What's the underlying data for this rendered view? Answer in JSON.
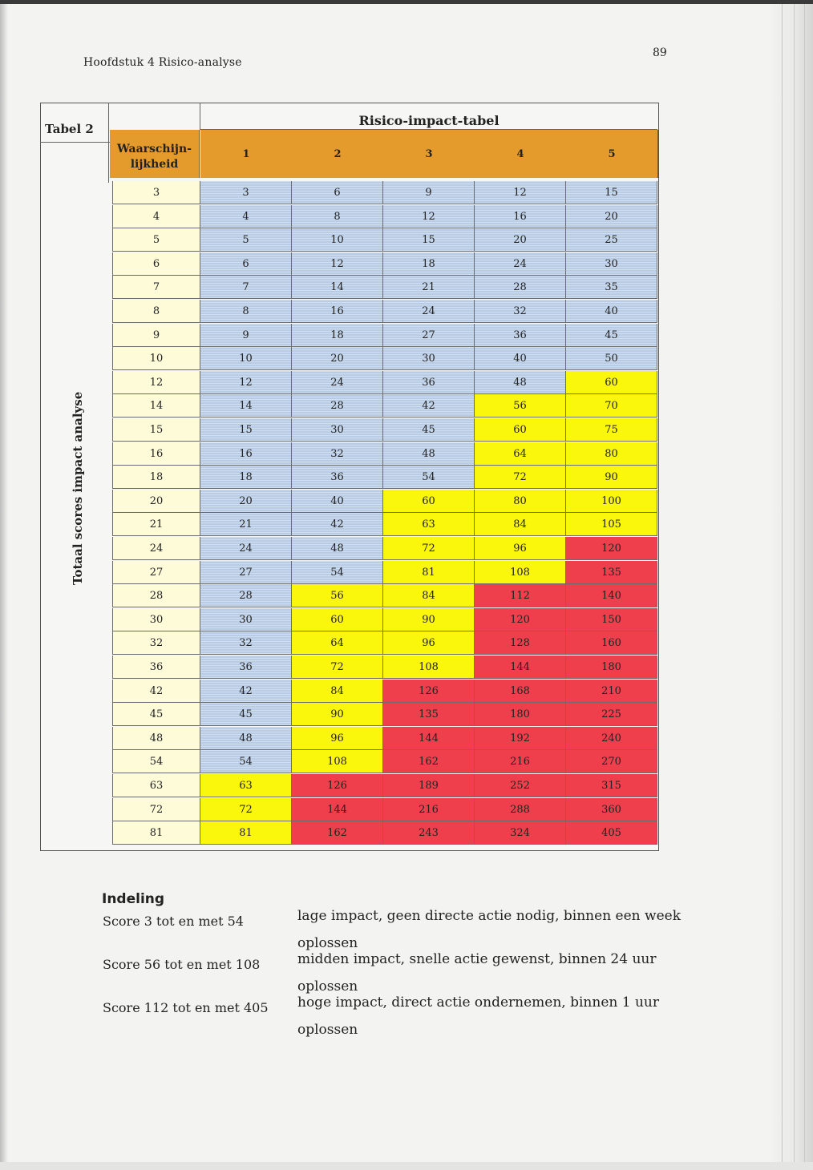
{
  "running_head": "Hoofdstuk 4  Risico-analyse",
  "page_number": "89",
  "table": {
    "label": "Tabel 2",
    "title": "Risico-impact-tabel",
    "row_header": "Waarschijn-\nlijkheid",
    "side_label": "Totaal scores impact analyse",
    "columns": [
      "1",
      "2",
      "3",
      "4",
      "5"
    ],
    "rows": [
      {
        "w": "3",
        "v": [
          3,
          6,
          9,
          12,
          15
        ]
      },
      {
        "w": "4",
        "v": [
          4,
          8,
          12,
          16,
          20
        ]
      },
      {
        "w": "5",
        "v": [
          5,
          10,
          15,
          20,
          25
        ]
      },
      {
        "w": "6",
        "v": [
          6,
          12,
          18,
          24,
          30
        ]
      },
      {
        "w": "7",
        "v": [
          7,
          14,
          21,
          28,
          35
        ]
      },
      {
        "w": "8",
        "v": [
          8,
          16,
          24,
          32,
          40
        ]
      },
      {
        "w": "9",
        "v": [
          9,
          18,
          27,
          36,
          45
        ]
      },
      {
        "w": "10",
        "v": [
          10,
          20,
          30,
          40,
          50
        ]
      },
      {
        "w": "12",
        "v": [
          12,
          24,
          36,
          48,
          60
        ]
      },
      {
        "w": "14",
        "v": [
          14,
          28,
          42,
          56,
          70
        ]
      },
      {
        "w": "15",
        "v": [
          15,
          30,
          45,
          60,
          75
        ]
      },
      {
        "w": "16",
        "v": [
          16,
          32,
          48,
          64,
          80
        ]
      },
      {
        "w": "18",
        "v": [
          18,
          36,
          54,
          72,
          90
        ]
      },
      {
        "w": "20",
        "v": [
          20,
          40,
          60,
          80,
          100
        ]
      },
      {
        "w": "21",
        "v": [
          21,
          42,
          63,
          84,
          105
        ]
      },
      {
        "w": "24",
        "v": [
          24,
          48,
          72,
          96,
          120
        ]
      },
      {
        "w": "27",
        "v": [
          27,
          54,
          81,
          108,
          135
        ]
      },
      {
        "w": "28",
        "v": [
          28,
          56,
          84,
          112,
          140
        ]
      },
      {
        "w": "30",
        "v": [
          30,
          60,
          90,
          120,
          150
        ]
      },
      {
        "w": "32",
        "v": [
          32,
          64,
          96,
          128,
          160
        ]
      },
      {
        "w": "36",
        "v": [
          36,
          72,
          108,
          144,
          180
        ]
      },
      {
        "w": "42",
        "v": [
          42,
          84,
          126,
          168,
          210
        ]
      },
      {
        "w": "45",
        "v": [
          45,
          90,
          135,
          180,
          225
        ]
      },
      {
        "w": "48",
        "v": [
          48,
          96,
          144,
          192,
          240
        ]
      },
      {
        "w": "54",
        "v": [
          54,
          108,
          162,
          216,
          270
        ]
      },
      {
        "w": "63",
        "v": [
          63,
          126,
          189,
          252,
          315
        ]
      },
      {
        "w": "72",
        "v": [
          72,
          144,
          216,
          288,
          360
        ]
      },
      {
        "w": "81",
        "v": [
          81,
          162,
          243,
          324,
          405
        ]
      }
    ],
    "colors": {
      "header": "#e59a2c",
      "waarschijnlijkheid": "#fdfbd8",
      "low": "#b9cce6",
      "medium": "#fbf70c",
      "high": "#ef3e4c"
    }
  },
  "legend": {
    "heading": "Indeling",
    "items": [
      {
        "score": "Score 3 tot en met 54",
        "desc": "lage impact, geen directe actie nodig, binnen een week oplossen"
      },
      {
        "score": "Score 56 tot en met 108",
        "desc": "midden impact, snelle actie gewenst, binnen 24 uur oplossen"
      },
      {
        "score": "Score 112 tot en met 405",
        "desc": "hoge impact, direct actie ondernemen, binnen 1 uur oplossen"
      }
    ]
  }
}
